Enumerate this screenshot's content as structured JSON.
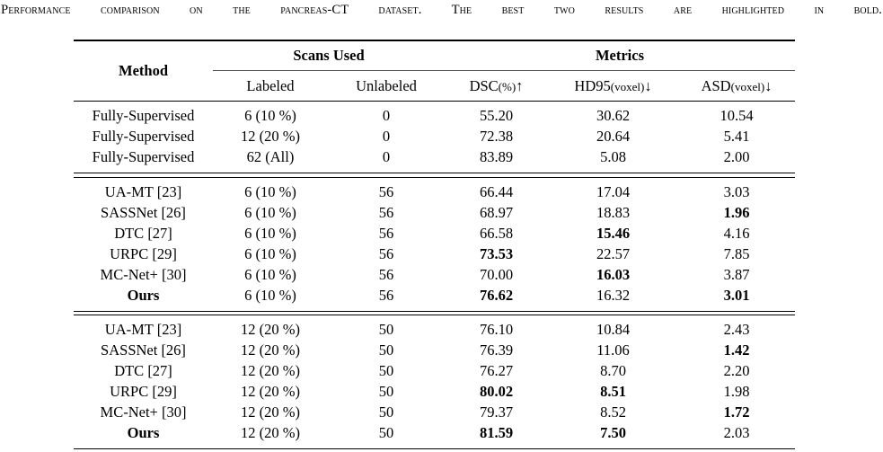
{
  "caption": "Performance comparison on the pancreas-CT dataset. The best two results are highlighted in bold.",
  "table": {
    "headers": {
      "method": "Method",
      "scans_group": "Scans Used",
      "metrics_group": "Metrics",
      "labeled": "Labeled",
      "unlabeled": "Unlabeled",
      "dsc": {
        "name": "DSC",
        "unit": "(%)",
        "arrow": "↑"
      },
      "hd95": {
        "name": "HD95",
        "unit": "(voxel)",
        "arrow": "↓"
      },
      "asd": {
        "name": "ASD",
        "unit": "(voxel)",
        "arrow": "↓"
      }
    },
    "blocks": [
      {
        "rows": [
          {
            "method": "Fully-Supervised",
            "labeled": "6 (10 %)",
            "unlabeled": "0",
            "dsc": "55.20",
            "hd95": "30.62",
            "asd": "10.54",
            "bold": {}
          },
          {
            "method": "Fully-Supervised",
            "labeled": "12 (20 %)",
            "unlabeled": "0",
            "dsc": "72.38",
            "hd95": "20.64",
            "asd": "5.41",
            "bold": {}
          },
          {
            "method": "Fully-Supervised",
            "labeled": "62 (All)",
            "unlabeled": "0",
            "dsc": "83.89",
            "hd95": "5.08",
            "asd": "2.00",
            "bold": {}
          }
        ]
      },
      {
        "rows": [
          {
            "method": "UA-MT [23]",
            "labeled": "6 (10 %)",
            "unlabeled": "56",
            "dsc": "66.44",
            "hd95": "17.04",
            "asd": "3.03",
            "bold": {}
          },
          {
            "method": "SASSNet [26]",
            "labeled": "6 (10 %)",
            "unlabeled": "56",
            "dsc": "68.97",
            "hd95": "18.83",
            "asd": "1.96",
            "bold": {
              "asd": true
            }
          },
          {
            "method": "DTC [27]",
            "labeled": "6 (10 %)",
            "unlabeled": "56",
            "dsc": "66.58",
            "hd95": "15.46",
            "asd": "4.16",
            "bold": {
              "hd95": true
            }
          },
          {
            "method": "URPC [29]",
            "labeled": "6 (10 %)",
            "unlabeled": "56",
            "dsc": "73.53",
            "hd95": "22.57",
            "asd": "7.85",
            "bold": {
              "dsc": true
            }
          },
          {
            "method": "MC-Net+ [30]",
            "labeled": "6 (10 %)",
            "unlabeled": "56",
            "dsc": "70.00",
            "hd95": "16.03",
            "asd": "3.87",
            "bold": {
              "hd95": true
            }
          },
          {
            "method": "Ours",
            "labeled": "6 (10 %)",
            "unlabeled": "56",
            "dsc": "76.62",
            "hd95": "16.32",
            "asd": "3.01",
            "bold": {
              "method": true,
              "dsc": true,
              "asd": true
            }
          }
        ]
      },
      {
        "rows": [
          {
            "method": "UA-MT [23]",
            "labeled": "12 (20 %)",
            "unlabeled": "50",
            "dsc": "76.10",
            "hd95": "10.84",
            "asd": "2.43",
            "bold": {}
          },
          {
            "method": "SASSNet [26]",
            "labeled": "12 (20 %)",
            "unlabeled": "50",
            "dsc": "76.39",
            "hd95": "11.06",
            "asd": "1.42",
            "bold": {
              "asd": true
            }
          },
          {
            "method": "DTC [27]",
            "labeled": "12 (20 %)",
            "unlabeled": "50",
            "dsc": "76.27",
            "hd95": "8.70",
            "asd": "2.20",
            "bold": {}
          },
          {
            "method": "URPC [29]",
            "labeled": "12 (20 %)",
            "unlabeled": "50",
            "dsc": "80.02",
            "hd95": "8.51",
            "asd": "1.98",
            "bold": {
              "dsc": true,
              "hd95": true
            }
          },
          {
            "method": "MC-Net+ [30]",
            "labeled": "12 (20 %)",
            "unlabeled": "50",
            "dsc": "79.37",
            "hd95": "8.52",
            "asd": "1.72",
            "bold": {
              "asd": true
            }
          },
          {
            "method": "Ours",
            "labeled": "12 (20 %)",
            "unlabeled": "50",
            "dsc": "81.59",
            "hd95": "7.50",
            "asd": "2.03",
            "bold": {
              "method": true,
              "dsc": true,
              "hd95": true
            }
          }
        ]
      }
    ]
  }
}
